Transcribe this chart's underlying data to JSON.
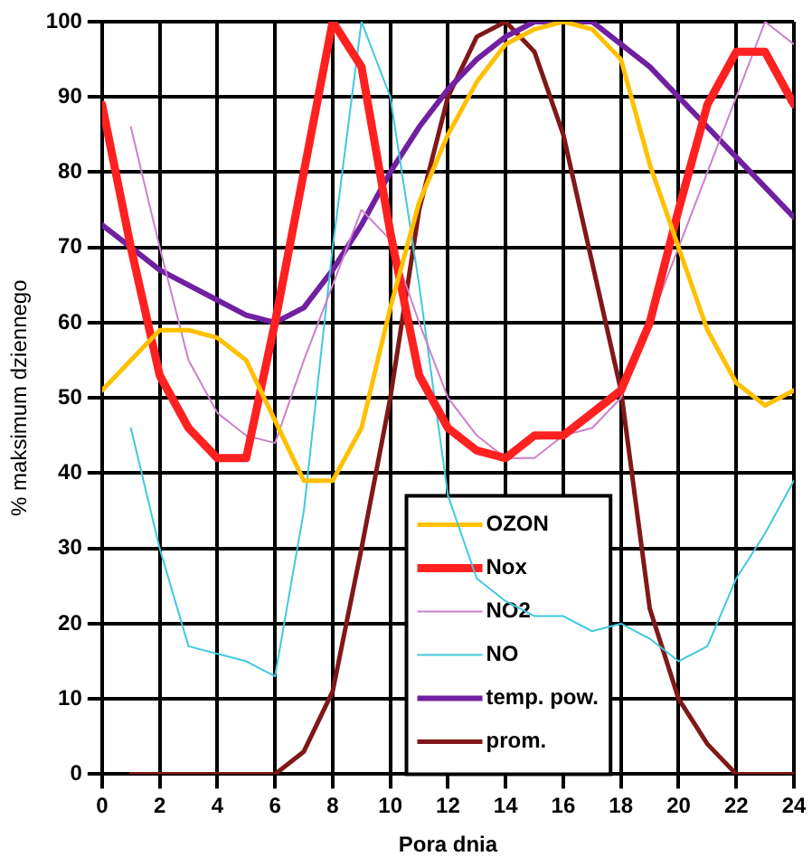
{
  "chart_data": {
    "type": "line",
    "xlabel": "Pora dnia",
    "ylabel": "% maksimum dziennego",
    "x": [
      0,
      1,
      2,
      3,
      4,
      5,
      6,
      7,
      8,
      9,
      10,
      11,
      12,
      13,
      14,
      15,
      16,
      17,
      18,
      19,
      20,
      21,
      22,
      23,
      24
    ],
    "xlim": [
      0,
      24
    ],
    "xticks": [
      0,
      2,
      4,
      6,
      8,
      10,
      12,
      14,
      16,
      18,
      20,
      22,
      24
    ],
    "ylim": [
      0,
      100
    ],
    "yticks": [
      0,
      10,
      20,
      30,
      40,
      50,
      60,
      70,
      80,
      90,
      100
    ],
    "grid": true,
    "legend": "bottom right",
    "marker": "none",
    "line_style": "solid",
    "series": [
      {
        "name": "OZON",
        "color": "#ffc000",
        "values": [
          51,
          55,
          59,
          59,
          58,
          55,
          47,
          39,
          39,
          46,
          62,
          76,
          85,
          92,
          97,
          99,
          100,
          99,
          95,
          81,
          70,
          59,
          52,
          49,
          51
        ]
      },
      {
        "name": "Nox",
        "color": "#ff2020",
        "values": [
          89,
          70,
          53,
          46,
          42,
          42,
          60,
          80,
          100,
          94,
          72,
          53,
          46,
          43,
          42,
          45,
          45,
          48,
          51,
          60,
          75,
          89,
          96,
          96,
          89
        ]
      },
      {
        "name": "NO2",
        "color": "#cc80cc",
        "values": [
          null,
          86,
          70,
          55,
          48,
          45,
          44,
          55,
          65,
          75,
          71,
          60,
          50,
          45,
          42,
          42,
          45,
          46,
          50,
          60,
          70,
          80,
          90,
          100,
          97
        ]
      },
      {
        "name": "NO",
        "color": "#40c8e0",
        "values": [
          null,
          46,
          30,
          17,
          16,
          15,
          13,
          35,
          70,
          100,
          90,
          65,
          37,
          26,
          23,
          21,
          21,
          19,
          20,
          18,
          15,
          17,
          26,
          32,
          39
        ]
      },
      {
        "name": "temp. pow.",
        "color": "#7020a0",
        "values": [
          73,
          70,
          67,
          65,
          63,
          61,
          60,
          62,
          67,
          73,
          80,
          86,
          91,
          95,
          98,
          100,
          100,
          100,
          97,
          94,
          90,
          86,
          82,
          78,
          74
        ]
      },
      {
        "name": "prom.",
        "color": "#801818",
        "values": [
          null,
          0,
          0,
          0,
          0,
          0,
          0,
          3,
          11,
          30,
          50,
          75,
          90,
          98,
          100,
          96,
          85,
          68,
          51,
          22,
          10,
          4,
          0,
          0,
          0
        ]
      }
    ]
  }
}
